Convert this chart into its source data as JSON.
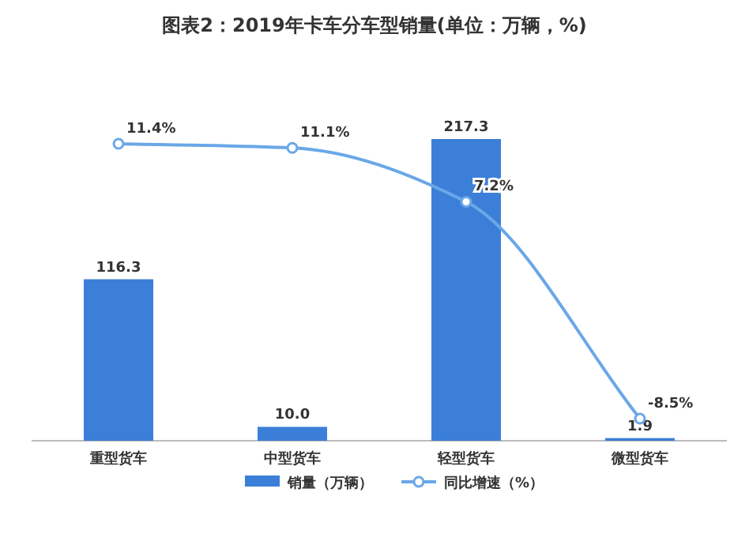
{
  "chart_data": {
    "type": "bar",
    "title": "图表2：2019年卡车分车型销量(单位：万辆，%)",
    "categories": [
      "重型货车",
      "中型货车",
      "轻型货车",
      "微型货车"
    ],
    "legend": "bottom",
    "marker": "circle",
    "series": [
      {
        "name": "销量（万辆）",
        "color": "#3b7fd8",
        "values": [
          116.3,
          10.0,
          217.3,
          1.9
        ],
        "value_labels": [
          "116.3",
          "10.0",
          "217.3",
          "1.9"
        ]
      },
      {
        "name": "同比增速（%）",
        "type": "line",
        "axis": "y2",
        "color": "#6aa7e8",
        "values": [
          11.4,
          11.1,
          7.2,
          -8.5
        ],
        "value_labels": [
          "11.4%",
          "11.1%",
          "7.2%",
          "-8.5%"
        ]
      }
    ]
  }
}
